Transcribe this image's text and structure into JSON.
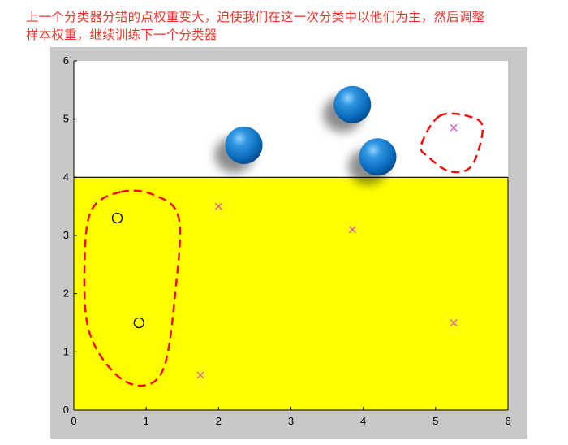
{
  "caption": {
    "line1": "上一个分类器分错的点权重变大，迫使我们在这一次分类中以他们为主，然后调整",
    "line2": "样本权重，继续训练下一个分类器"
  },
  "colors": {
    "caption": "#e8352a",
    "figure_bg": "#c8c8c8",
    "region_positive": "#ffff00",
    "region_negative": "#ffffff",
    "cross_marker": "#e040c0",
    "circle_marker": "#000000",
    "big_sphere": "#0a72c4",
    "highlight_dash": "#ff0000"
  },
  "chart_data": {
    "type": "scatter",
    "title": "",
    "xlabel": "",
    "ylabel": "",
    "xlim": [
      0,
      6
    ],
    "ylim": [
      0,
      6
    ],
    "xticks": [
      "0",
      "1",
      "2",
      "3",
      "4",
      "5",
      "6"
    ],
    "yticks": [
      "0",
      "1",
      "2",
      "3",
      "4",
      "5",
      "6"
    ],
    "grid": false,
    "decision_boundary": {
      "orientation": "horizontal",
      "y": 4,
      "below_region": "yellow",
      "above_region": "white"
    },
    "series": [
      {
        "marker": "circle",
        "points": [
          {
            "x": 0.6,
            "y": 3.3
          },
          {
            "x": 0.9,
            "y": 1.5
          }
        ]
      },
      {
        "marker": "cross",
        "points": [
          {
            "x": 2.0,
            "y": 3.5
          },
          {
            "x": 1.75,
            "y": 0.6
          },
          {
            "x": 3.85,
            "y": 3.1
          },
          {
            "x": 5.25,
            "y": 1.5
          },
          {
            "x": 5.25,
            "y": 4.85
          }
        ]
      },
      {
        "marker": "large-sphere",
        "points": [
          {
            "x": 2.35,
            "y": 4.55
          },
          {
            "x": 3.85,
            "y": 5.25
          },
          {
            "x": 4.2,
            "y": 4.35
          }
        ]
      }
    ],
    "highlight_regions": [
      {
        "style": "dashed",
        "points": [
          {
            "x": 0.65,
            "y": 3.75
          },
          {
            "x": 1.1,
            "y": 3.7
          },
          {
            "x": 1.45,
            "y": 3.3
          },
          {
            "x": 1.4,
            "y": 2.0
          },
          {
            "x": 1.25,
            "y": 0.75
          },
          {
            "x": 0.95,
            "y": 0.42
          },
          {
            "x": 0.55,
            "y": 0.65
          },
          {
            "x": 0.2,
            "y": 1.4
          },
          {
            "x": 0.15,
            "y": 2.6
          },
          {
            "x": 0.25,
            "y": 3.45
          }
        ]
      },
      {
        "style": "dashed",
        "points": [
          {
            "x": 5.05,
            "y": 5.05
          },
          {
            "x": 5.45,
            "y": 5.05
          },
          {
            "x": 5.65,
            "y": 4.85
          },
          {
            "x": 5.5,
            "y": 4.2
          },
          {
            "x": 5.2,
            "y": 4.1
          },
          {
            "x": 4.9,
            "y": 4.35
          },
          {
            "x": 4.8,
            "y": 4.55
          }
        ]
      }
    ]
  }
}
